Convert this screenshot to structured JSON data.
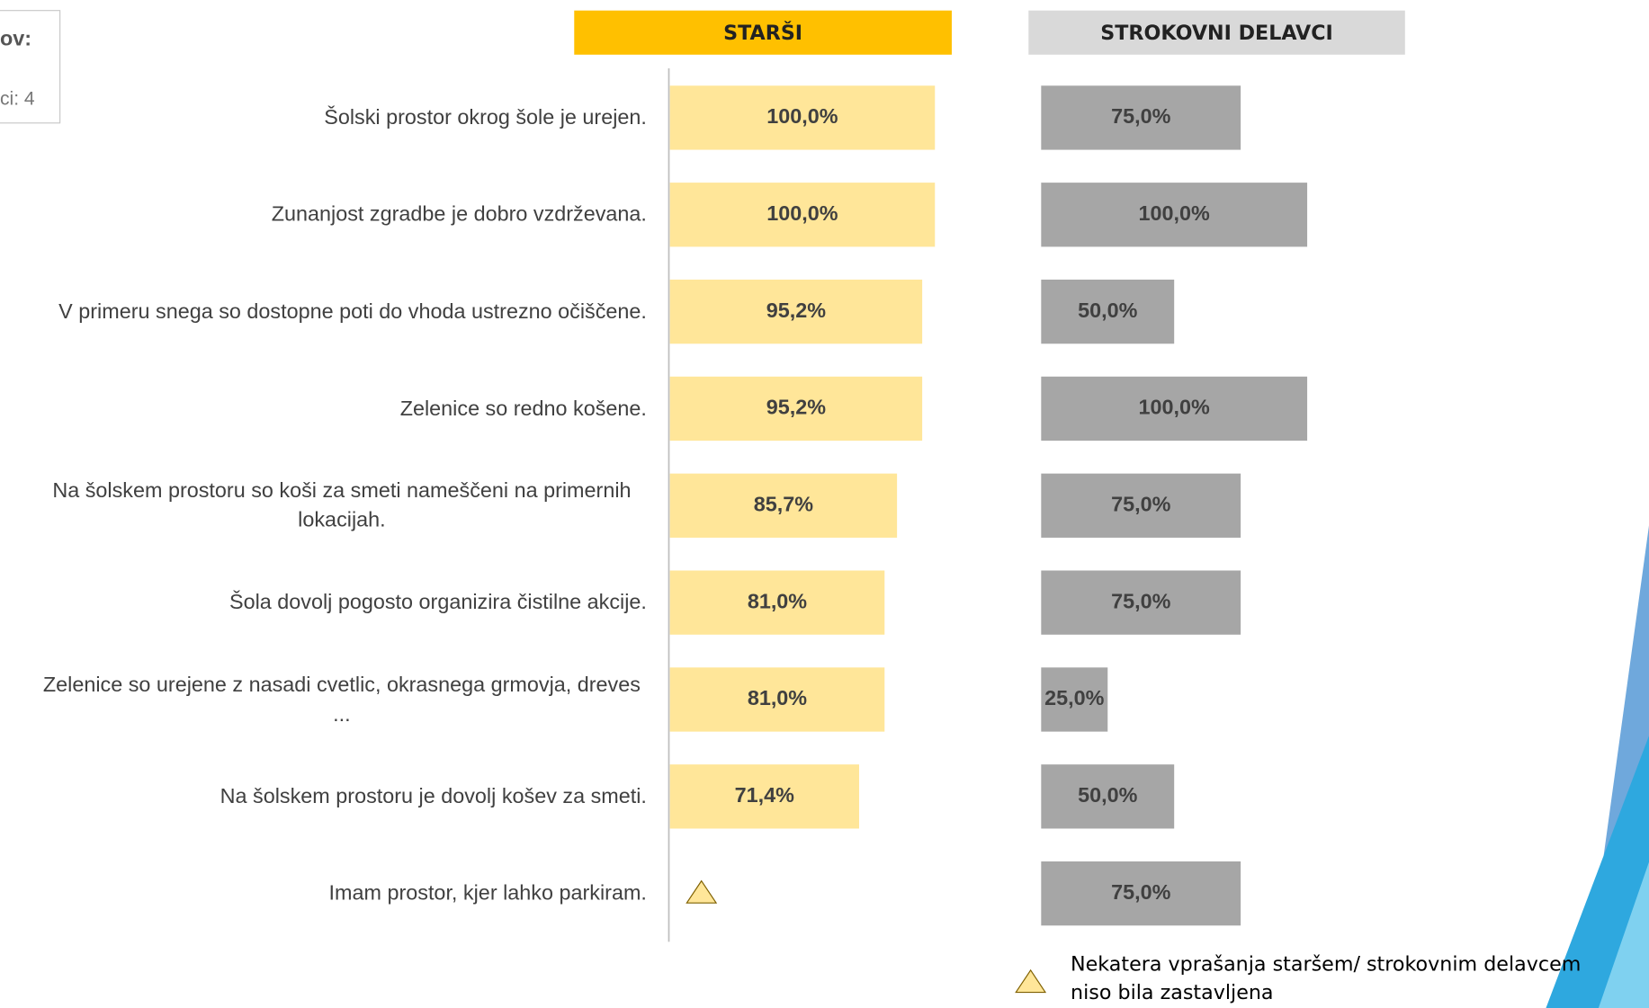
{
  "chart_data": {
    "type": "bar",
    "orientation": "horizontal",
    "side_note": [
      "ov:",
      "ci: 4"
    ],
    "categories": [
      "Šolski prostor okrog šole je urejen.",
      "Zunanjost zgradbe je dobro vzdrževana.",
      "V primeru snega so dostopne poti do vhoda ustrezno očiščene.",
      "Zelenice so redno košene.",
      "Na šolskem prostoru so koši za smeti nameščeni na primernih lokacijah.",
      "Šola dovolj pogosto organizira čistilne akcije.",
      "Zelenice so urejene z nasadi cvetlic, okrasnega grmovja, dreves ...",
      "Na šolskem prostoru je dovolj košev za smeti.",
      "Imam prostor, kjer lahko parkiram."
    ],
    "xlim": [
      0,
      100
    ],
    "series": [
      {
        "name": "STARŠI",
        "color": "#FFE699",
        "header_color": "#FFC000",
        "values": [
          100.0,
          100.0,
          95.2,
          95.2,
          85.7,
          81.0,
          81.0,
          71.4,
          null
        ],
        "value_labels": [
          "100,0%",
          "100,0%",
          "95,2%",
          "95,2%",
          "85,7%",
          "81,0%",
          "81,0%",
          "71,4%",
          null
        ]
      },
      {
        "name": "STROKOVNI DELAVCI",
        "color": "#A6A6A6",
        "header_color": "#D9D9D9",
        "values": [
          75.0,
          100.0,
          50.0,
          100.0,
          75.0,
          75.0,
          25.0,
          50.0,
          75.0
        ],
        "value_labels": [
          "75,0%",
          "100,0%",
          "50,0%",
          "100,0%",
          "75,0%",
          "75,0%",
          "25,0%",
          "50,0%",
          "75,0%"
        ]
      }
    ],
    "footnote": [
      "Nekatera vprašanja staršem/ strokovnim delavcem",
      "niso bila zastavljena"
    ]
  }
}
